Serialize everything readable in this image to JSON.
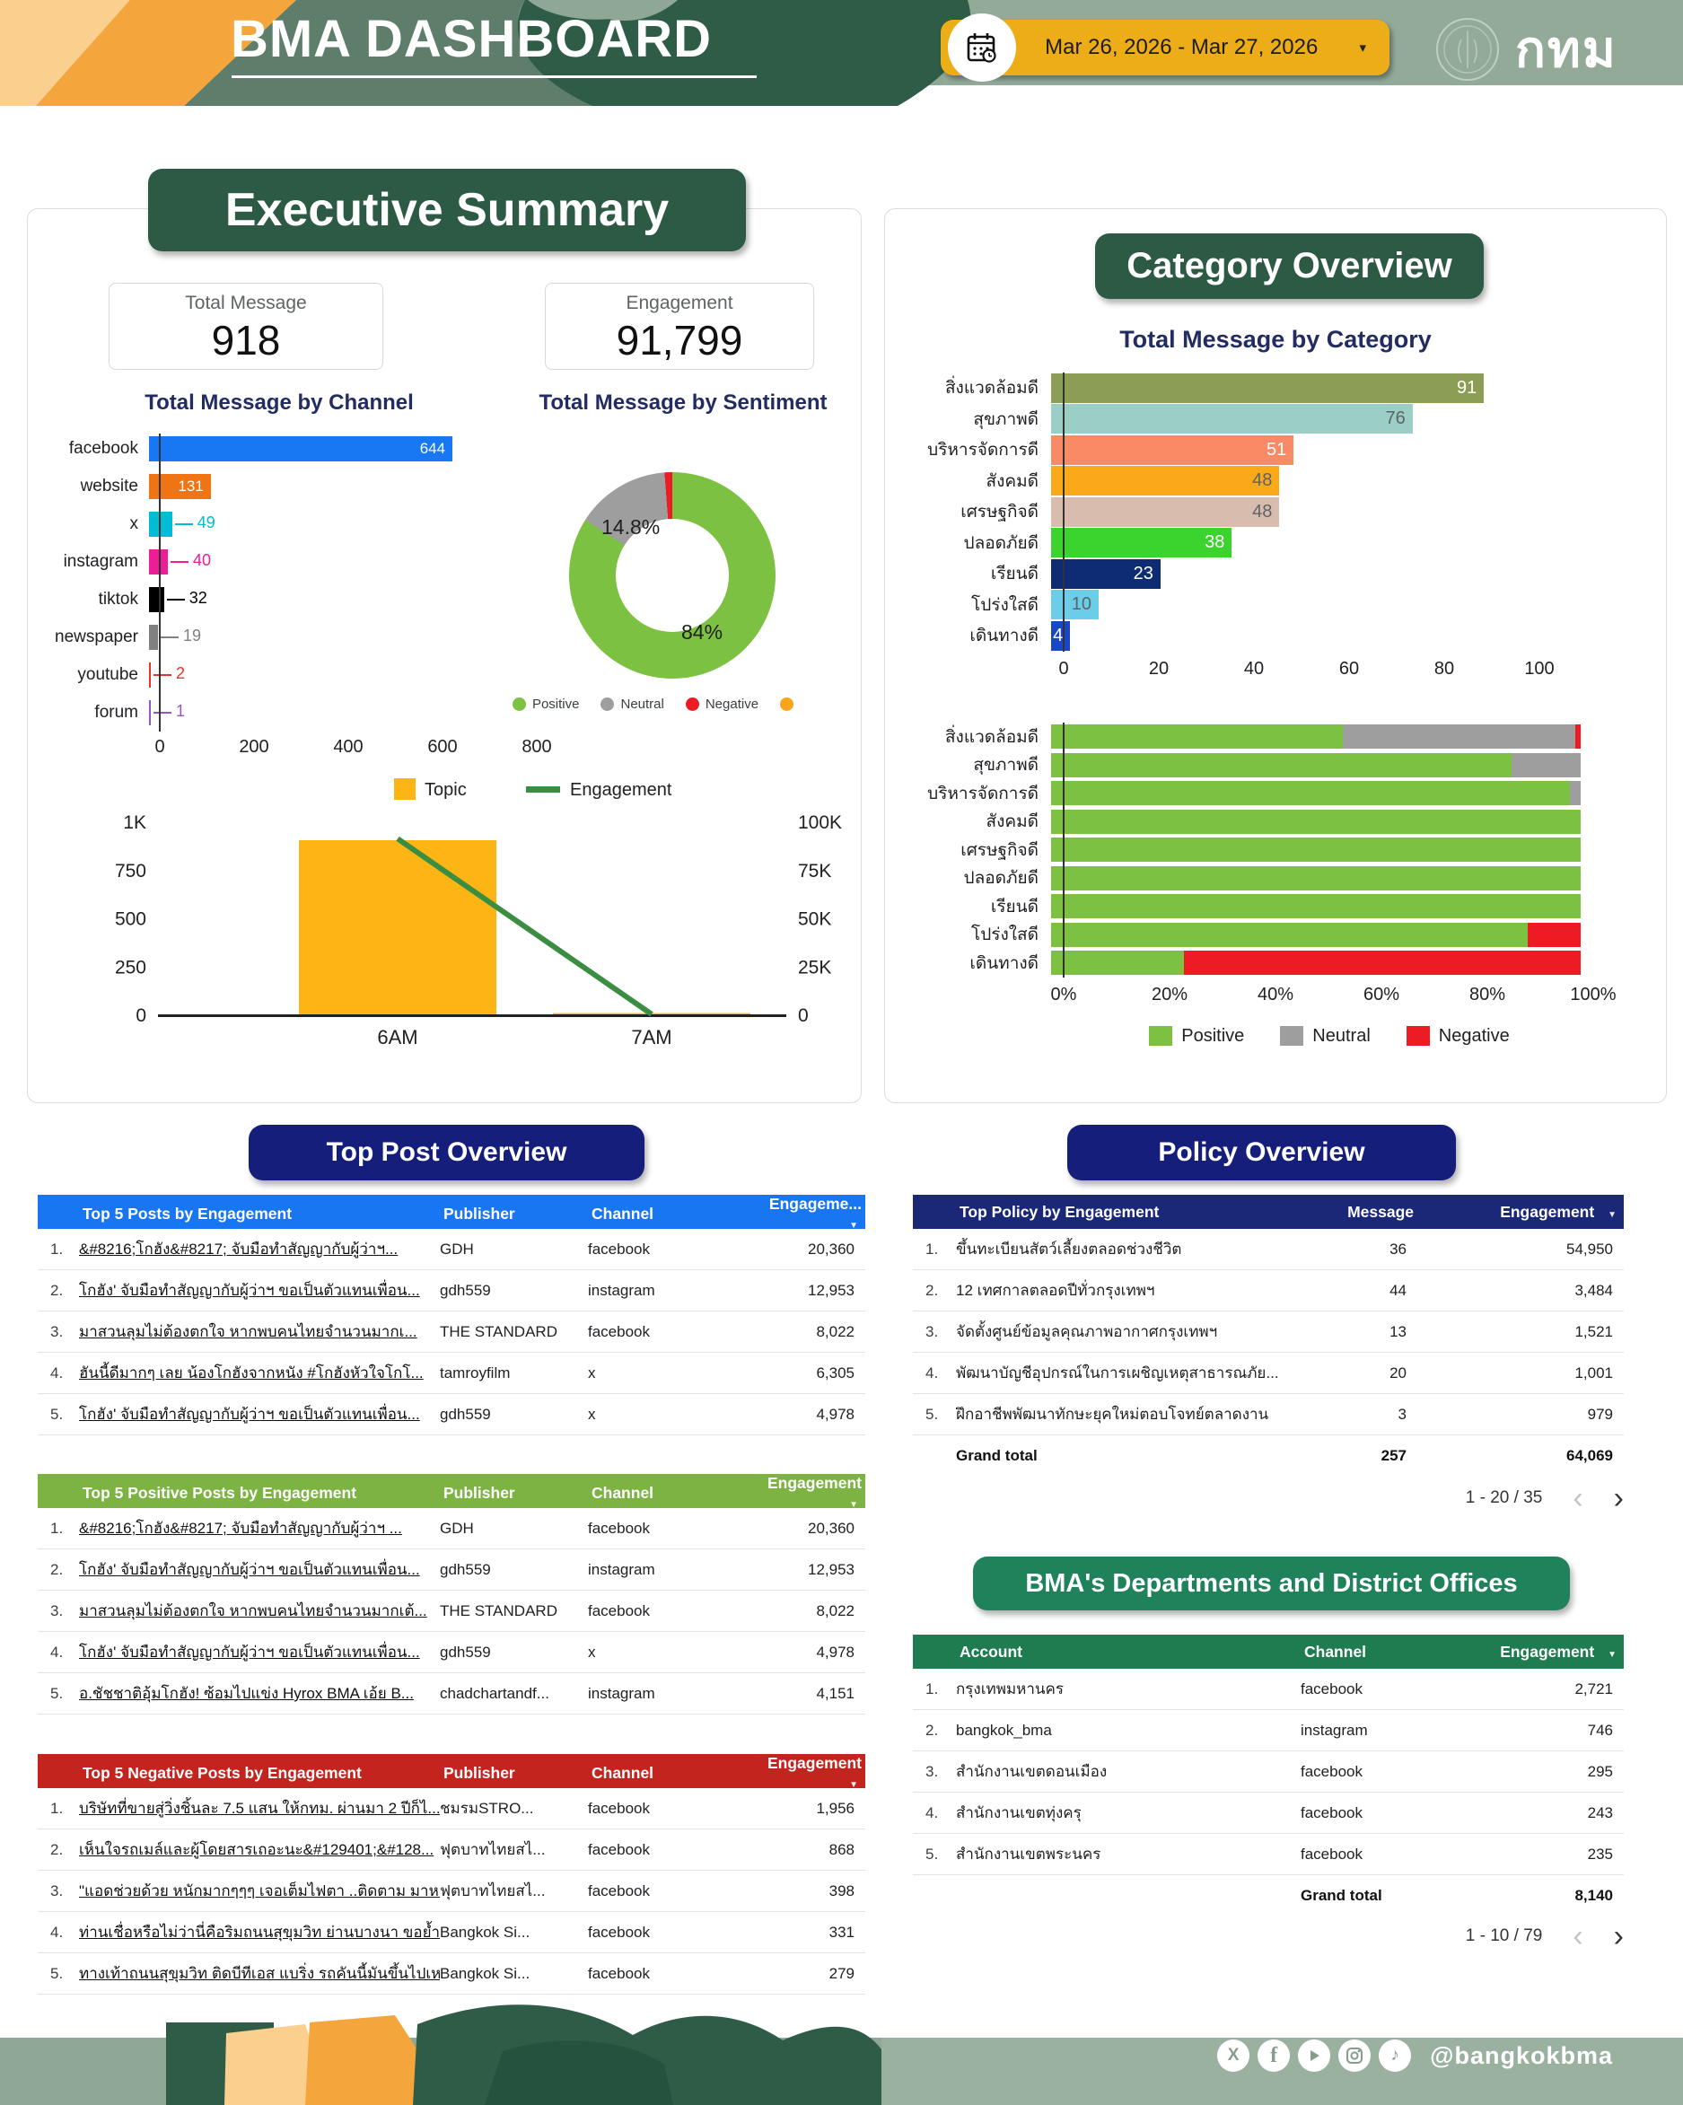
{
  "header": {
    "title": "BMA DASHBOARD",
    "date_picker": {
      "label": "Mar 26, 2026 - Mar 27, 2026",
      "dropdown_icon": "▾"
    },
    "logo_text": "กทม"
  },
  "executive_summary": {
    "title": "Executive Summary",
    "stat_cards": [
      {
        "label": "Total Message",
        "value": "918"
      },
      {
        "label": "Engagement",
        "value": "91,799"
      }
    ]
  },
  "category_overview": {
    "title": "Category Overview"
  },
  "top_post_overview": {
    "title": "Top Post Overview"
  },
  "policy_overview": {
    "title": "Policy Overview"
  },
  "departments_section": {
    "title": "BMA's Departments and District Offices"
  },
  "chart_data": [
    {
      "id": "channel_bar",
      "type": "bar",
      "orientation": "horizontal",
      "title": "Total Message by Channel",
      "categories": [
        "facebook",
        "website",
        "x",
        "instagram",
        "tiktok",
        "newspaper",
        "youtube",
        "forum"
      ],
      "values": [
        644,
        131,
        49,
        40,
        32,
        19,
        2,
        1
      ],
      "colors": [
        "#1877F2",
        "#F07414",
        "#00BCD4",
        "#EC1E96",
        "#000000",
        "#808080",
        "#E8322D",
        "#9356C8"
      ],
      "value_label_inside": [
        true,
        true,
        false,
        false,
        false,
        false,
        false,
        false
      ],
      "xlim": [
        0,
        800
      ],
      "xticks": [
        "0",
        "200",
        "400",
        "600",
        "800"
      ]
    },
    {
      "id": "sentiment_donut",
      "type": "pie",
      "title": "Total Message by Sentiment",
      "labels": [
        "Positive",
        "Neutral",
        "Negative",
        ""
      ],
      "values": [
        84,
        14.8,
        1.2,
        0
      ],
      "colors": [
        "#7CC142",
        "#9E9E9E",
        "#EB1C24",
        "#F9A51A"
      ],
      "slice_labels": [
        "84%",
        "14.8%"
      ]
    },
    {
      "id": "topic_engagement",
      "type": "combo",
      "categories": [
        "6AM",
        "7AM"
      ],
      "series": [
        {
          "name": "Topic",
          "type": "bar",
          "axis": "left",
          "color": "#FDB515",
          "values": [
            907,
            11
          ]
        },
        {
          "name": "Engagement",
          "type": "line",
          "axis": "right",
          "color": "#3B8E41",
          "values": [
            91500,
            500
          ]
        }
      ],
      "left_axis": {
        "max": 1000,
        "ticks": [
          "0",
          "250",
          "500",
          "750",
          "1K"
        ]
      },
      "right_axis": {
        "max": 100000,
        "ticks": [
          "0",
          "25K",
          "50K",
          "75K",
          "100K"
        ]
      }
    },
    {
      "id": "category_bar",
      "type": "bar",
      "orientation": "horizontal",
      "title": "Total Message by Category",
      "categories": [
        "สิ่งแวดล้อมดี",
        "สุขภาพดี",
        "บริหารจัดการดี",
        "สังคมดี",
        "เศรษฐกิจดี",
        "ปลอดภัยดี",
        "เรียนดี",
        "โปร่งใสดี",
        "เดินทางดี"
      ],
      "values": [
        91,
        76,
        51,
        48,
        48,
        38,
        23,
        10,
        4
      ],
      "colors": [
        "#8C9E55",
        "#9BCEC5",
        "#F98A66",
        "#FBA819",
        "#D8BCAE",
        "#3BD32E",
        "#0E2C73",
        "#6CCDE9",
        "#1946C4"
      ],
      "value_label_colors": [
        "#FFFFFF",
        "#5F6368",
        "#FFFFFF",
        "#5F6368",
        "#5F6368",
        "#FFFFFF",
        "#FFFFFF",
        "#5F6368",
        "#FFFFFF"
      ],
      "xlim": [
        0,
        100
      ],
      "xticks": [
        "0",
        "20",
        "40",
        "60",
        "80",
        "100"
      ]
    },
    {
      "id": "category_sentiment",
      "type": "stacked_bar",
      "categories": [
        "สิ่งแวดล้อมดี",
        "สุขภาพดี",
        "บริหารจัดการดี",
        "สังคมดี",
        "เศรษฐกิจดี",
        "ปลอดภัยดี",
        "เรียนดี",
        "โปร่งใสดี",
        "เดินทางดี"
      ],
      "series": [
        {
          "name": "Positive",
          "color": "#7CC142",
          "values": [
            55,
            87,
            98,
            100,
            100,
            100,
            100,
            90,
            25
          ]
        },
        {
          "name": "Neutral",
          "color": "#9E9E9E",
          "values": [
            43.9,
            13,
            2,
            0,
            0,
            0,
            0,
            0,
            0
          ]
        },
        {
          "name": "Negative",
          "color": "#ED1C24",
          "values": [
            1.1,
            0,
            0,
            0,
            0,
            0,
            0,
            10,
            75
          ]
        }
      ],
      "xticks": [
        "0%",
        "20%",
        "40%",
        "60%",
        "80%",
        "100%"
      ],
      "legend": [
        "Positive",
        "Neutral",
        "Negative"
      ]
    }
  ],
  "tables": {
    "top_posts": {
      "accent": "#1876F2",
      "header": {
        "title": "Top 5 Posts by Engagement",
        "publisher": "Publisher",
        "channel": "Channel",
        "engagement": "Engageme...",
        "sort_icon": "▼"
      },
      "rows": [
        {
          "n": "1.",
          "title": "&#8216;โกฮัง&#8217; จับมือทำสัญญากับผู้ว่าฯ...",
          "publisher": "GDH",
          "channel": "facebook",
          "engagement": "20,360"
        },
        {
          "n": "2.",
          "title": "โกฮัง' จับมือทำสัญญากับผู้ว่าฯ ขอเป็นตัวแทนเพื่อน...",
          "publisher": "gdh559",
          "channel": "instagram",
          "engagement": "12,953"
        },
        {
          "n": "3.",
          "title": "มาสวนลุมไม่ต้องตกใจ หากพบคนไทยจำนวนมากเ...",
          "publisher": "THE STANDARD",
          "channel": "facebook",
          "engagement": "8,022"
        },
        {
          "n": "4.",
          "title": "ฮันนี้ดีมากๆ เลย น้องโกฮังจากหนัง #โกฮังหัวใจโกโ...",
          "publisher": "tamroyfilm",
          "channel": "x",
          "engagement": "6,305"
        },
        {
          "n": "5.",
          "title": "โกฮัง' จับมือทำสัญญากับผู้ว่าฯ ขอเป็นตัวแทนเพื่อน...",
          "publisher": "gdh559",
          "channel": "x",
          "engagement": "4,978"
        }
      ]
    },
    "positive_posts": {
      "accent": "#7CB342",
      "header": {
        "title": "Top 5 Positive Posts by Engagement",
        "publisher": "Publisher",
        "channel": "Channel",
        "engagement": "Engagement",
        "sort_icon": "▼"
      },
      "rows": [
        {
          "n": "1.",
          "title": "&#8216;โกฮัง&#8217; จับมือทำสัญญากับผู้ว่าฯ ...",
          "publisher": "GDH",
          "channel": "facebook",
          "engagement": "20,360"
        },
        {
          "n": "2.",
          "title": "โกฮัง' จับมือทำสัญญากับผู้ว่าฯ ขอเป็นตัวแทนเพื่อน...",
          "publisher": "gdh559",
          "channel": "instagram",
          "engagement": "12,953"
        },
        {
          "n": "3.",
          "title": "มาสวนลุมไม่ต้องตกใจ หากพบคนไทยจำนวนมากเต้...",
          "publisher": "THE STANDARD",
          "channel": "facebook",
          "engagement": "8,022"
        },
        {
          "n": "4.",
          "title": "โกฮัง' จับมือทำสัญญากับผู้ว่าฯ ขอเป็นตัวแทนเพื่อน...",
          "publisher": "gdh559",
          "channel": "x",
          "engagement": "4,978"
        },
        {
          "n": "5.",
          "title": "อ.ชัชชาติอุ้มโกฮัง! ซ้อมไปแข่ง Hyrox BMA เอ้ย B...",
          "publisher": "chadchartandf...",
          "channel": "instagram",
          "engagement": "4,151"
        }
      ]
    },
    "negative_posts": {
      "accent": "#C3241E",
      "header": {
        "title": "Top 5 Negative Posts by Engagement",
        "publisher": "Publisher",
        "channel": "Channel",
        "engagement": "Engagement",
        "sort_icon": "▼"
      },
      "rows": [
        {
          "n": "1.",
          "title": "บริษัทที่ขายสู่วิ่งชิ้นละ 7.5 แสน ให้กทม. ผ่านมา 2 ปีก็ไ...",
          "publisher": "ชมรมSTRO...",
          "channel": "facebook",
          "engagement": "1,956"
        },
        {
          "n": "2.",
          "title": "เห็นใจรถเมล์และผู้โดยสารเถอะนะ&#129401;&#128...",
          "publisher": "ฟุตบาทไทยสไ...",
          "channel": "facebook",
          "engagement": "868"
        },
        {
          "n": "3.",
          "title": "\"แอดช่วยด้วย หนักมากๆๆๆ เจอเต็มไฟตา ..ติดตาม มาห...",
          "publisher": "ฟุตบาทไทยสไ...",
          "channel": "facebook",
          "engagement": "398"
        },
        {
          "n": "4.",
          "title": "ท่านเชื่อหรือไม่ว่านี่คือริมถนนสุขุมวิท ย่านบางนา ขอย้ำ...",
          "publisher": "Bangkok Si...",
          "channel": "facebook",
          "engagement": "331"
        },
        {
          "n": "5.",
          "title": "ทางเท้าถนนสุขุมวิท ติดบีทีเอส แบริ่ง รถคันนี้มันขึ้นไปเห...",
          "publisher": "Bangkok Si...",
          "channel": "facebook",
          "engagement": "279"
        }
      ]
    },
    "policy": {
      "accent": "#1B2878",
      "header": {
        "title": "Top Policy by Engagement",
        "message": "Message",
        "engagement": "Engagement",
        "sort_icon": "▼"
      },
      "rows": [
        {
          "n": "1.",
          "title": "ขึ้นทะเบียนสัตว์เลี้ยงตลอดช่วงชีวิต",
          "message": "36",
          "engagement": "54,950"
        },
        {
          "n": "2.",
          "title": "12 เทศกาลตลอดปีทั่วกรุงเทพฯ",
          "message": "44",
          "engagement": "3,484"
        },
        {
          "n": "3.",
          "title": "จัดตั้งศูนย์ข้อมูลคุณภาพอากาศกรุงเทพฯ",
          "message": "13",
          "engagement": "1,521"
        },
        {
          "n": "4.",
          "title": "พัฒนาบัญชีอุปกรณ์ในการเผชิญเหตุสาธารณภัย...",
          "message": "20",
          "engagement": "1,001"
        },
        {
          "n": "5.",
          "title": "ฝึกอาชีพพัฒนาทักษะยุคใหม่ตอบโจทย์ตลาดงาน",
          "message": "3",
          "engagement": "979"
        }
      ],
      "grand_total": {
        "label": "Grand total",
        "message": "257",
        "engagement": "64,069"
      },
      "pagination": {
        "range": "1 - 20 / 35",
        "prev": "‹",
        "next": "›"
      }
    },
    "departments": {
      "accent": "#1E7C50",
      "header": {
        "account": "Account",
        "channel": "Channel",
        "engagement": "Engagement",
        "sort_icon": "▼"
      },
      "rows": [
        {
          "n": "1.",
          "account": "กรุงเทพมหานคร",
          "channel": "facebook",
          "engagement": "2,721"
        },
        {
          "n": "2.",
          "account": "bangkok_bma",
          "channel": "instagram",
          "engagement": "746"
        },
        {
          "n": "3.",
          "account": "สำนักงานเขตดอนเมือง",
          "channel": "facebook",
          "engagement": "295"
        },
        {
          "n": "4.",
          "account": "สำนักงานเขตทุ่งครุ",
          "channel": "facebook",
          "engagement": "243"
        },
        {
          "n": "5.",
          "account": "สำนักงานเขตพระนคร",
          "channel": "facebook",
          "engagement": "235"
        }
      ],
      "grand_total": {
        "label": "Grand total",
        "engagement": "8,140"
      },
      "pagination": {
        "range": "1 - 10 / 79",
        "prev": "‹",
        "next": "›"
      }
    }
  },
  "footer": {
    "handle": "@bangkokbma",
    "icons": [
      "x-icon",
      "facebook-icon",
      "youtube-icon",
      "instagram-icon",
      "tiktok-icon"
    ]
  }
}
